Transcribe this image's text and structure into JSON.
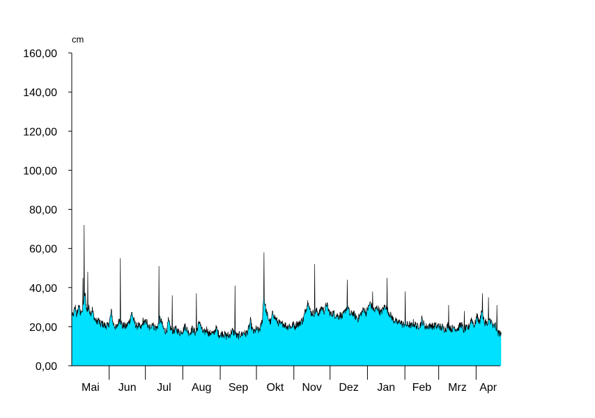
{
  "chart_data": {
    "type": "area",
    "unit": "cm",
    "ylim": [
      0,
      160
    ],
    "y_ticks": [
      "0,00",
      "20,00",
      "40,00",
      "60,00",
      "80,00",
      "100,00",
      "120,00",
      "140,00",
      "160,00"
    ],
    "month_labels": [
      "Mai",
      "Jun",
      "Jul",
      "Aug",
      "Sep",
      "Okt",
      "Nov",
      "Dez",
      "Jan",
      "Feb",
      "Mrz",
      "Apr"
    ],
    "month_lengths_days": [
      31,
      30,
      31,
      31,
      30,
      31,
      30,
      31,
      31,
      28,
      31,
      30
    ],
    "x_start_day": 0,
    "x_end_day": 355,
    "fill_color": "#00E1FF",
    "line_color": "#000000",
    "series_approx_daily": [
      27,
      25,
      28,
      30,
      26,
      28,
      32,
      26,
      29,
      27,
      34,
      37,
      31,
      27,
      30,
      28,
      27,
      29,
      26,
      24,
      23,
      22,
      24,
      22,
      21,
      22,
      21,
      21,
      20,
      21,
      20,
      22,
      25,
      28,
      22,
      21,
      20,
      19,
      21,
      23,
      24,
      22,
      20,
      21,
      20,
      20,
      21,
      22,
      23,
      26,
      27,
      24,
      22,
      21,
      20,
      21,
      20,
      19,
      20,
      23,
      22,
      22,
      23,
      20,
      19,
      20,
      21,
      22,
      20,
      20,
      19,
      20,
      22,
      24,
      23,
      21,
      19,
      18,
      18,
      19,
      23,
      21,
      19,
      18,
      18,
      18,
      19,
      18,
      18,
      17,
      17,
      18,
      18,
      19,
      21,
      19,
      18,
      17,
      17,
      18,
      19,
      18,
      17,
      17,
      19,
      21,
      23,
      20,
      18,
      17,
      17,
      18,
      19,
      17,
      16,
      17,
      17,
      16,
      17,
      19,
      19,
      17,
      16,
      16,
      16,
      17,
      16,
      16,
      15,
      16,
      15,
      16,
      17,
      18,
      17,
      17,
      16,
      15,
      15,
      16,
      16,
      16,
      17,
      17,
      16,
      17,
      18,
      20,
      23,
      20,
      18,
      17,
      18,
      19,
      18,
      18,
      19,
      21,
      24,
      36,
      32,
      28,
      26,
      24,
      23,
      22,
      26,
      27,
      25,
      24,
      23,
      22,
      22,
      21,
      21,
      22,
      21,
      21,
      20,
      20,
      21,
      20,
      20,
      21,
      21,
      20,
      21,
      22,
      21,
      22,
      23,
      23,
      24,
      27,
      29,
      31,
      34,
      29,
      27,
      27,
      27,
      27,
      28,
      28,
      27,
      27,
      28,
      30,
      29,
      28,
      29,
      32,
      30,
      28,
      27,
      26,
      27,
      27,
      26,
      26,
      26,
      25,
      26,
      26,
      25,
      26,
      27,
      29,
      30,
      30,
      27,
      26,
      27,
      27,
      26,
      25,
      25,
      24,
      25,
      26,
      27,
      28,
      29,
      28,
      27,
      29,
      30,
      32,
      31,
      30,
      29,
      28,
      29,
      30,
      29,
      28,
      27,
      28,
      29,
      30,
      31,
      29,
      28,
      27,
      26,
      25,
      24,
      23,
      24,
      22,
      22,
      22,
      23,
      22,
      21,
      21,
      22,
      21,
      21,
      21,
      21,
      20,
      21,
      22,
      21,
      21,
      20,
      20,
      21,
      21,
      24,
      22,
      21,
      20,
      20,
      20,
      21,
      20,
      21,
      20,
      20,
      21,
      20,
      20,
      21,
      20,
      19,
      20,
      19,
      19,
      19,
      20,
      21,
      20,
      19,
      19,
      19,
      20,
      19,
      19,
      19,
      20,
      21,
      21,
      19,
      18,
      19,
      19,
      19,
      20,
      22,
      24,
      23,
      21,
      21,
      24,
      26,
      23,
      22,
      27,
      28,
      24,
      22,
      23,
      21,
      21,
      24,
      23,
      22,
      20,
      20,
      21,
      18,
      17,
      17,
      16
    ],
    "spikes": [
      {
        "day": 9,
        "value": 45
      },
      {
        "day": 10,
        "value": 72
      },
      {
        "day": 13,
        "value": 48
      },
      {
        "day": 40,
        "value": 55
      },
      {
        "day": 72,
        "value": 51
      },
      {
        "day": 83,
        "value": 36
      },
      {
        "day": 103,
        "value": 37
      },
      {
        "day": 135,
        "value": 41
      },
      {
        "day": 159,
        "value": 58
      },
      {
        "day": 201,
        "value": 52
      },
      {
        "day": 228,
        "value": 44
      },
      {
        "day": 249,
        "value": 38
      },
      {
        "day": 261,
        "value": 45
      },
      {
        "day": 276,
        "value": 38
      },
      {
        "day": 312,
        "value": 31
      },
      {
        "day": 325,
        "value": 28
      },
      {
        "day": 340,
        "value": 37
      },
      {
        "day": 345,
        "value": 35
      },
      {
        "day": 352,
        "value": 31
      }
    ]
  }
}
